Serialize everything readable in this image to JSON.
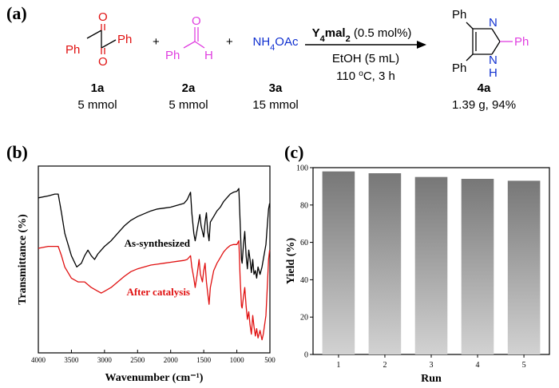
{
  "panels": {
    "a": "(a)",
    "b": "(b)",
    "c": "(c)"
  },
  "reaction": {
    "compounds": [
      {
        "id": "1a",
        "amount": "5 mmol",
        "atoms": [
          "Ph",
          "Ph",
          "O",
          "O"
        ]
      },
      {
        "id": "2a",
        "amount": "5 mmol",
        "atoms": [
          "Ph",
          "O",
          "H"
        ]
      },
      {
        "id": "3a",
        "amount": "15 mmol",
        "formula": "NH4OAc"
      },
      {
        "id": "4a",
        "amount": "1.39 g, 94%",
        "atoms": [
          "Ph",
          "Ph",
          "Ph",
          "N",
          "N",
          "H"
        ]
      }
    ],
    "plus": "+",
    "catalyst": "Y4mal2",
    "catalyst_loading": "(0.5 mol%)",
    "solvent": "EtOH (5 mL)",
    "conditions": "110 °C, 3 h"
  },
  "chart_data": [
    {
      "type": "line",
      "xlabel": "Wavenumber (cm⁻¹)",
      "ylabel": "Transmittance (%)",
      "xlim": [
        4000,
        500
      ],
      "x_ticks": [
        4000,
        3500,
        3000,
        2500,
        2000,
        1500,
        1000,
        500
      ],
      "y_ticks": [],
      "series": [
        {
          "name": "As-synthesized",
          "color": "#000000",
          "points": [
            [
              4000,
              83
            ],
            [
              3850,
              84
            ],
            [
              3750,
              85
            ],
            [
              3700,
              85
            ],
            [
              3650,
              75
            ],
            [
              3600,
              64
            ],
            [
              3500,
              52
            ],
            [
              3420,
              46
            ],
            [
              3350,
              48
            ],
            [
              3300,
              52
            ],
            [
              3250,
              55
            ],
            [
              3200,
              52
            ],
            [
              3150,
              50
            ],
            [
              3100,
              53
            ],
            [
              3000,
              57
            ],
            [
              2900,
              60
            ],
            [
              2800,
              64
            ],
            [
              2700,
              68
            ],
            [
              2600,
              71
            ],
            [
              2500,
              73
            ],
            [
              2400,
              74.5
            ],
            [
              2300,
              76
            ],
            [
              2200,
              77
            ],
            [
              2100,
              77.5
            ],
            [
              2000,
              78
            ],
            [
              1900,
              79
            ],
            [
              1800,
              80
            ],
            [
              1750,
              82
            ],
            [
              1700,
              86
            ],
            [
              1680,
              75
            ],
            [
              1650,
              64
            ],
            [
              1630,
              60
            ],
            [
              1600,
              66
            ],
            [
              1560,
              74
            ],
            [
              1540,
              68
            ],
            [
              1500,
              62
            ],
            [
              1480,
              70
            ],
            [
              1460,
              75
            ],
            [
              1440,
              65
            ],
            [
              1420,
              60
            ],
            [
              1400,
              70
            ],
            [
              1350,
              73
            ],
            [
              1300,
              76
            ],
            [
              1250,
              78
            ],
            [
              1200,
              81
            ],
            [
              1150,
              83
            ],
            [
              1100,
              85
            ],
            [
              1050,
              86
            ],
            [
              1000,
              86.5
            ],
            [
              970,
              88
            ],
            [
              950,
              70
            ],
            [
              930,
              50
            ],
            [
              920,
              48
            ],
            [
              900,
              58
            ],
            [
              880,
              65
            ],
            [
              860,
              52
            ],
            [
              840,
              45
            ],
            [
              820,
              55
            ],
            [
              800,
              50
            ],
            [
              780,
              43
            ],
            [
              760,
              50
            ],
            [
              740,
              42
            ],
            [
              720,
              44
            ],
            [
              700,
              40
            ],
            [
              680,
              46
            ],
            [
              650,
              42
            ],
            [
              620,
              46
            ],
            [
              600,
              50
            ],
            [
              560,
              58
            ],
            [
              540,
              68
            ],
            [
              520,
              77
            ],
            [
              505,
              80
            ]
          ]
        },
        {
          "name": "After catalysis",
          "color": "#e01010",
          "points": [
            [
              4000,
              56
            ],
            [
              3850,
              57
            ],
            [
              3750,
              57
            ],
            [
              3700,
              57
            ],
            [
              3650,
              52
            ],
            [
              3600,
              46
            ],
            [
              3500,
              40
            ],
            [
              3400,
              38
            ],
            [
              3300,
              38
            ],
            [
              3200,
              35
            ],
            [
              3100,
              33
            ],
            [
              3050,
              32
            ],
            [
              3000,
              33
            ],
            [
              2900,
              35
            ],
            [
              2800,
              38
            ],
            [
              2700,
              41
            ],
            [
              2600,
              43.5
            ],
            [
              2500,
              45
            ],
            [
              2400,
              46
            ],
            [
              2300,
              47
            ],
            [
              2200,
              47.5
            ],
            [
              2100,
              48
            ],
            [
              2000,
              48.5
            ],
            [
              1900,
              49
            ],
            [
              1800,
              49.5
            ],
            [
              1750,
              50
            ],
            [
              1700,
              52
            ],
            [
              1680,
              46
            ],
            [
              1650,
              40
            ],
            [
              1630,
              35
            ],
            [
              1600,
              42
            ],
            [
              1570,
              50
            ],
            [
              1550,
              42
            ],
            [
              1520,
              38
            ],
            [
              1500,
              44
            ],
            [
              1480,
              48
            ],
            [
              1460,
              38
            ],
            [
              1440,
              32
            ],
            [
              1420,
              26
            ],
            [
              1400,
              35
            ],
            [
              1350,
              44
            ],
            [
              1300,
              48
            ],
            [
              1250,
              51
            ],
            [
              1200,
              54
            ],
            [
              1150,
              56
            ],
            [
              1100,
              57.5
            ],
            [
              1050,
              58
            ],
            [
              1000,
              58
            ],
            [
              970,
              60
            ],
            [
              950,
              40
            ],
            [
              930,
              25
            ],
            [
              920,
              24
            ],
            [
              900,
              30
            ],
            [
              880,
              35
            ],
            [
              860,
              25
            ],
            [
              840,
              18
            ],
            [
              820,
              22
            ],
            [
              800,
              15
            ],
            [
              780,
              10
            ],
            [
              760,
              20
            ],
            [
              740,
              14
            ],
            [
              720,
              9
            ],
            [
              700,
              13
            ],
            [
              680,
              8
            ],
            [
              650,
              12
            ],
            [
              620,
              7
            ],
            [
              600,
              10
            ],
            [
              560,
              20
            ],
            [
              540,
              35
            ],
            [
              520,
              50
            ],
            [
              505,
              55
            ]
          ]
        }
      ],
      "annotations": [
        "As-synthesized",
        "After catalysis"
      ]
    },
    {
      "type": "bar",
      "xlabel": "Run",
      "ylabel": "Yield (%)",
      "categories": [
        "1",
        "2",
        "3",
        "4",
        "5"
      ],
      "values": [
        98,
        97,
        95,
        94,
        93
      ],
      "ylim": [
        0,
        100
      ],
      "y_ticks": [
        0,
        20,
        40,
        60,
        80,
        100
      ]
    }
  ]
}
